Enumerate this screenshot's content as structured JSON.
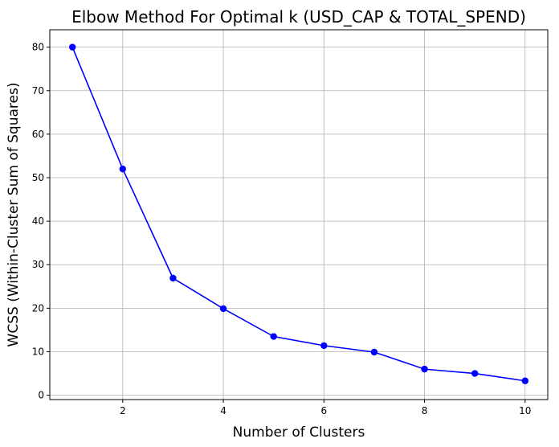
{
  "chart_data": {
    "type": "line",
    "title": "Elbow Method For Optimal k (USD_CAP & TOTAL_SPEND)",
    "xlabel": "Number of Clusters",
    "ylabel": "WCSS (Within-Cluster Sum of Squares)",
    "xlim": [
      0.55,
      10.45
    ],
    "ylim": [
      -1,
      84
    ],
    "xticks": [
      2,
      4,
      6,
      8,
      10
    ],
    "yticks": [
      0,
      10,
      20,
      30,
      40,
      50,
      60,
      70,
      80
    ],
    "grid": true,
    "marker": "circle",
    "color": "#0000ff",
    "series": [
      {
        "x": [
          1,
          2,
          3,
          4,
          5,
          6,
          7,
          8,
          9,
          10
        ],
        "y": [
          80,
          52,
          26.9,
          19.9,
          13.5,
          11.4,
          9.9,
          6,
          5,
          3.3
        ]
      }
    ]
  }
}
